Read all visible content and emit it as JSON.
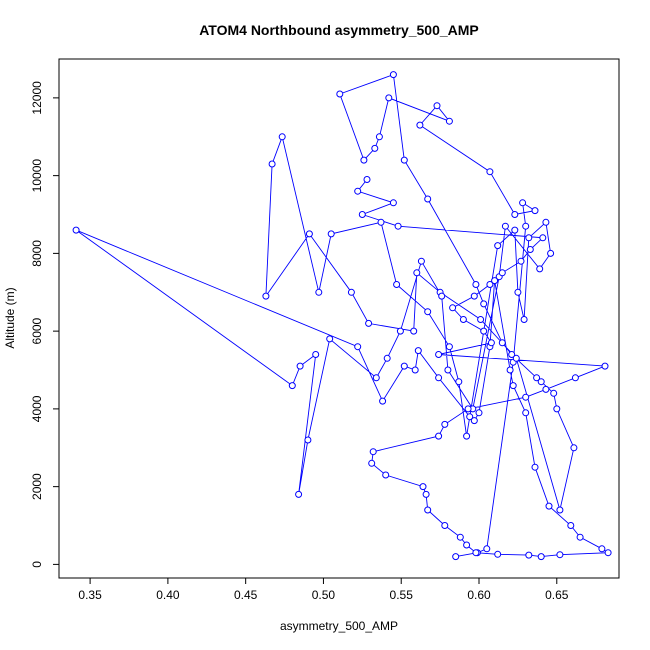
{
  "chart_data": {
    "type": "line",
    "title": "ATOM4 Northbound asymmetry_500_AMP",
    "xlabel": "asymmetry_500_AMP",
    "ylabel": "Altitude (m)",
    "xlim": [
      0.33,
      0.69
    ],
    "ylim": [
      -350,
      13000
    ],
    "xticks": [
      0.35,
      0.4,
      0.45,
      0.5,
      0.55,
      0.6,
      0.65
    ],
    "xtick_labels": [
      "0.35",
      "0.40",
      "0.45",
      "0.50",
      "0.55",
      "0.60",
      "0.65"
    ],
    "yticks": [
      0,
      2000,
      4000,
      6000,
      8000,
      10000,
      12000
    ],
    "ytick_labels": [
      "0",
      "2000",
      "4000",
      "6000",
      "8000",
      "10000",
      "12000"
    ],
    "series_color": "#0000ff",
    "grid": false,
    "legend": "none",
    "x": [
      0.585,
      0.599,
      0.605,
      0.622,
      0.63,
      0.628,
      0.636,
      0.623,
      0.607,
      0.562,
      0.573,
      0.581,
      0.542,
      0.536,
      0.533,
      0.526,
      0.5105,
      0.545,
      0.552,
      0.567,
      0.598,
      0.603,
      0.615,
      0.621,
      0.637,
      0.64,
      0.648,
      0.65,
      0.661,
      0.652,
      0.624,
      0.601,
      0.575,
      0.56,
      0.558,
      0.529,
      0.518,
      0.491,
      0.463,
      0.467,
      0.4735,
      0.497,
      0.505,
      0.537,
      0.547,
      0.567,
      0.581,
      0.587,
      0.592,
      0.612,
      0.623,
      0.625,
      0.629,
      0.632,
      0.643,
      0.646,
      0.639,
      0.617,
      0.613,
      0.596,
      0.58,
      0.576,
      0.563,
      0.5495,
      0.541,
      0.534,
      0.504,
      0.49,
      0.484,
      0.495,
      0.485,
      0.48,
      0.341,
      0.522,
      0.538,
      0.552,
      0.559,
      0.561,
      0.574,
      0.594,
      0.597,
      0.6,
      0.607,
      0.61,
      0.62,
      0.622,
      0.63,
      0.636,
      0.645,
      0.659,
      0.665,
      0.679,
      0.683,
      0.652,
      0.64,
      0.632,
      0.612,
      0.598,
      0.592,
      0.588,
      0.578,
      0.567,
      0.566,
      0.564,
      0.54,
      0.531,
      0.532,
      0.574,
      0.578,
      0.593,
      0.63,
      0.643,
      0.662,
      0.681,
      0.574,
      0.608,
      0.603,
      0.59,
      0.583,
      0.597,
      0.607,
      0.615,
      0.627,
      0.633,
      0.641,
      0.548,
      0.525,
      0.545,
      0.522,
      0.528
    ],
    "y": [
      200,
      300,
      400,
      5200,
      8700,
      9300,
      9100,
      9000,
      10100,
      11300,
      11800,
      11400,
      12000,
      11000,
      10700,
      10400,
      12100,
      12600,
      10400,
      9400,
      7200,
      6700,
      5700,
      5400,
      4800,
      4700,
      4400,
      4000,
      3000,
      1400,
      5300,
      6300,
      7000,
      7500,
      6000,
      6200,
      7000,
      8500,
      6900,
      10300,
      11000,
      7000,
      8500,
      8800,
      7200,
      6500,
      5600,
      4700,
      3300,
      8200,
      8600,
      7000,
      6300,
      8400,
      8800,
      8000,
      7600,
      8700,
      7400,
      4000,
      5000,
      6900,
      7800,
      6000,
      5300,
      4800,
      5800,
      3200,
      1800,
      5400,
      5100,
      4600,
      8600,
      5600,
      4200,
      5100,
      5000,
      5500,
      4800,
      3800,
      3700,
      3900,
      5600,
      7300,
      5000,
      4600,
      3900,
      2500,
      1500,
      1000,
      700,
      400,
      300,
      250,
      200,
      240,
      260,
      300,
      500,
      700,
      1000,
      1400,
      1800,
      2000,
      2300,
      2600,
      2900,
      3300,
      3600,
      4000,
      4300,
      4500,
      4800,
      5100,
      5400,
      5700,
      6000,
      6300,
      6600,
      6900,
      7200,
      7500,
      7800,
      8100,
      8400,
      8700,
      9000,
      9300,
      9600,
      9900
    ]
  }
}
